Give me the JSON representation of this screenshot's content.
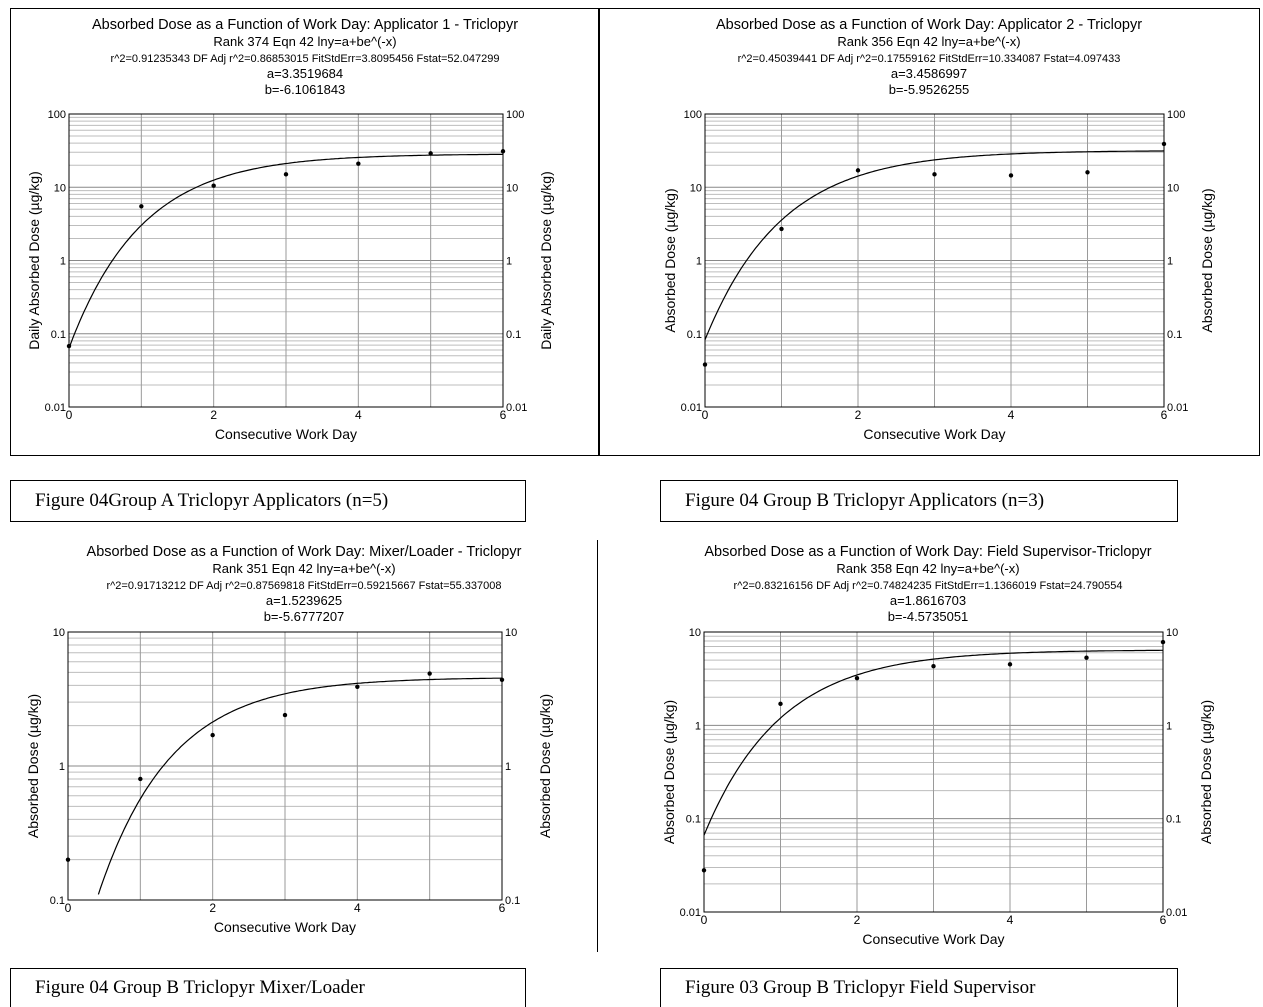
{
  "captions": [
    "Figure 04Group A Triclopyr Applicators (n=5)",
    "Figure 04 Group B Triclopyr Applicators (n=3)",
    "Figure 04 Group B Triclopyr Mixer/Loader",
    "Figure 03 Group B Triclopyr Field Supervisor"
  ],
  "chart_data": [
    {
      "type": "scatter",
      "title": "Absorbed Dose as a Function of Work Day: Applicator 1 - Triclopyr",
      "subtitle_lines": [
        "Rank 374  Eqn 42  lny=a+be^(-x)",
        "r^2=0.91235343  DF Adj r^2=0.86853015  FitStdErr=3.8095456  Fstat=52.047299",
        "a=3.3519684",
        "b=-6.1061843"
      ],
      "xlabel": "Consecutive Work Day",
      "ylabel": "Daily Absorbed Dose (µg/kg)",
      "ylabel_right": "Daily Absorbed Dose (µg/kg)",
      "yscale": "log",
      "xlim": [
        0,
        6
      ],
      "ylim": [
        0.01,
        100
      ],
      "x_ticks": [
        "0",
        "2",
        "4",
        "6"
      ],
      "y_ticks": [
        "0.01",
        "0.1",
        "1",
        "10",
        "100"
      ],
      "fit": {
        "a": 3.3519684,
        "b": -6.1061843,
        "equation": "lny=a+be^(-x)"
      },
      "points": [
        {
          "x": 0,
          "y": 0.068
        },
        {
          "x": 1,
          "y": 5.5
        },
        {
          "x": 2,
          "y": 10.5
        },
        {
          "x": 3,
          "y": 15
        },
        {
          "x": 4,
          "y": 21
        },
        {
          "x": 5,
          "y": 29
        },
        {
          "x": 6,
          "y": 31
        }
      ]
    },
    {
      "type": "scatter",
      "title": "Absorbed Dose as a Function of Work Day: Applicator 2 - Triclopyr",
      "subtitle_lines": [
        "Rank 356  Eqn 42  lny=a+be^(-x)",
        "r^2=0.45039441  DF Adj r^2=0.17559162  FitStdErr=10.334087  Fstat=4.097433",
        "a=3.4586997",
        "b=-5.9526255"
      ],
      "xlabel": "Consecutive Work Day",
      "ylabel": "Absorbed Dose (µg/kg)",
      "ylabel_right": "Absorbed Dose (µg/kg)",
      "yscale": "log",
      "xlim": [
        0,
        6
      ],
      "ylim": [
        0.01,
        100
      ],
      "x_ticks": [
        "0",
        "2",
        "4",
        "6"
      ],
      "y_ticks": [
        "0.01",
        "0.1",
        "1",
        "10",
        "100"
      ],
      "fit": {
        "a": 3.4586997,
        "b": -5.9526255,
        "equation": "lny=a+be^(-x)"
      },
      "points": [
        {
          "x": 0,
          "y": 0.038
        },
        {
          "x": 1,
          "y": 2.7
        },
        {
          "x": 2,
          "y": 17
        },
        {
          "x": 3,
          "y": 15
        },
        {
          "x": 4,
          "y": 14.5
        },
        {
          "x": 5,
          "y": 16
        },
        {
          "x": 6,
          "y": 39
        }
      ]
    },
    {
      "type": "scatter",
      "title": "Absorbed Dose as a Function of Work Day: Mixer/Loader - Triclopyr",
      "subtitle_lines": [
        "Rank 351  Eqn 42  lny=a+be^(-x)",
        "r^2=0.91713212  DF Adj r^2=0.87569818  FitStdErr=0.59215667  Fstat=55.337008",
        "a=1.5239625",
        "b=-5.6777207"
      ],
      "xlabel": "Consecutive Work Day",
      "ylabel": "Absorbed Dose (µg/kg)",
      "ylabel_right": "Absorbed Dose (µg/kg)",
      "yscale": "log",
      "xlim": [
        0,
        6
      ],
      "ylim": [
        0.1,
        10
      ],
      "x_ticks": [
        "0",
        "2",
        "4",
        "6"
      ],
      "y_ticks": [
        "0.1",
        "1",
        "10"
      ],
      "fit": {
        "a": 1.5239625,
        "b": -5.6777207,
        "equation": "lny=a+be^(-x)"
      },
      "points": [
        {
          "x": 0,
          "y": 0.2
        },
        {
          "x": 1,
          "y": 0.8
        },
        {
          "x": 2,
          "y": 1.7
        },
        {
          "x": 3,
          "y": 2.4
        },
        {
          "x": 4,
          "y": 3.9
        },
        {
          "x": 5,
          "y": 4.9
        },
        {
          "x": 6,
          "y": 4.4
        }
      ]
    },
    {
      "type": "scatter",
      "title": "Absorbed Dose as a Function of Work Day: Field Supervisor-Triclopyr",
      "subtitle_lines": [
        "Rank 358  Eqn 42  lny=a+be^(-x)",
        "r^2=0.83216156  DF Adj r^2=0.74824235  FitStdErr=1.1366019  Fstat=24.790554",
        "a=1.8616703",
        "b=-4.5735051"
      ],
      "xlabel": "Consecutive Work Day",
      "ylabel": "Absorbed Dose (µg/kg)",
      "ylabel_right": "Absorbed Dose (µg/kg)",
      "yscale": "log",
      "xlim": [
        0,
        6
      ],
      "ylim": [
        0.01,
        10
      ],
      "x_ticks": [
        "0",
        "2",
        "4",
        "6"
      ],
      "y_ticks": [
        "0.01",
        "0.1",
        "1",
        "10"
      ],
      "fit": {
        "a": 1.8616703,
        "b": -4.5735051,
        "equation": "lny=a+be^(-x)"
      },
      "points": [
        {
          "x": 0,
          "y": 0.028
        },
        {
          "x": 1,
          "y": 1.7
        },
        {
          "x": 2,
          "y": 3.2
        },
        {
          "x": 3,
          "y": 4.3
        },
        {
          "x": 4,
          "y": 4.5
        },
        {
          "x": 5,
          "y": 5.3
        },
        {
          "x": 6,
          "y": 7.8
        }
      ]
    }
  ]
}
